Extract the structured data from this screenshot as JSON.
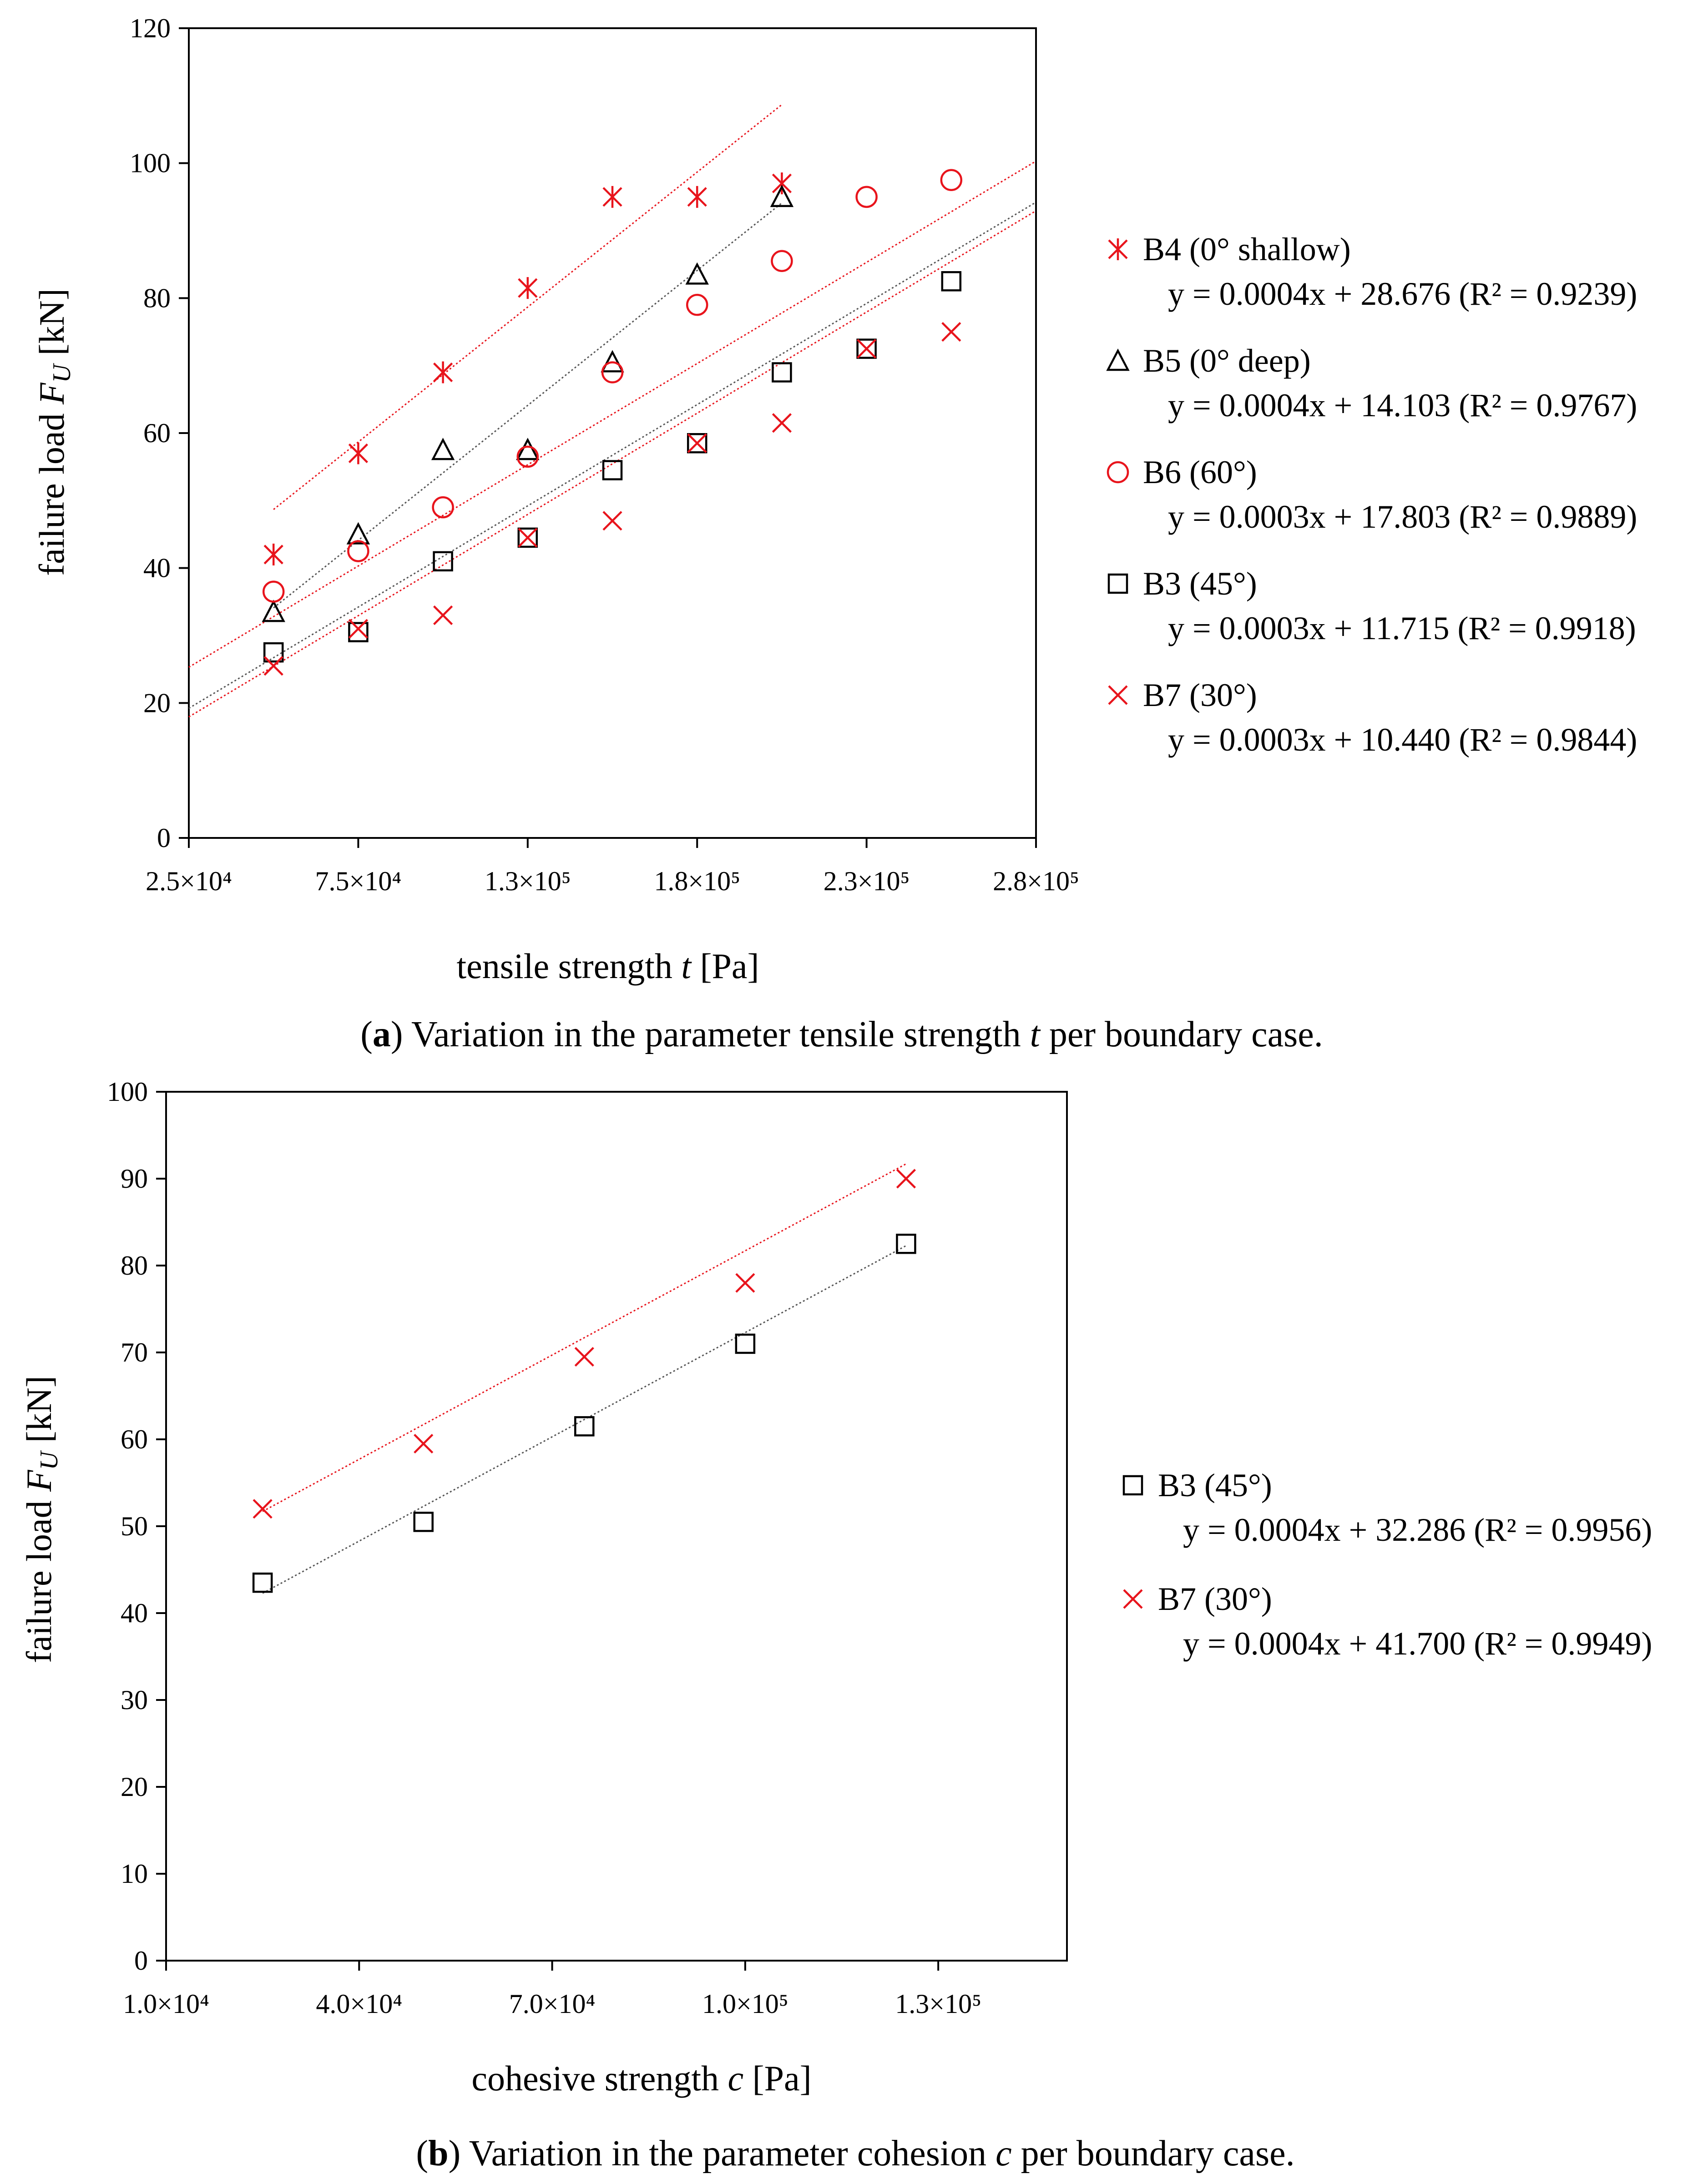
{
  "chart_data": [
    {
      "id": "a",
      "type": "scatter",
      "caption": {
        "open": "(",
        "letter": "a",
        "close": ")",
        "text_before": " Variation in the parameter tensile strength ",
        "symbol": "t",
        "text_after": " per boundary case."
      },
      "xlabel": {
        "before": "tensile strength ",
        "symbol": "t",
        "after": " [Pa]"
      },
      "ylabel": {
        "before": "failure load ",
        "symbol": "F",
        "sub": "U",
        "after": " [kN]"
      },
      "xlim": [
        25000,
        275000
      ],
      "ylim": [
        0,
        120
      ],
      "xticks": [
        {
          "value": 25000,
          "label": "2.5×10⁴"
        },
        {
          "value": 75000,
          "label": "7.5×10⁴"
        },
        {
          "value": 125000,
          "label": "1.3×10⁵"
        },
        {
          "value": 175000,
          "label": "1.8×10⁵"
        },
        {
          "value": 225000,
          "label": "2.3×10⁵"
        },
        {
          "value": 275000,
          "label": "2.8×10⁵"
        }
      ],
      "yticks": [
        0,
        20,
        40,
        60,
        80,
        100,
        120
      ],
      "legend_position": "right",
      "series": [
        {
          "name": "B4 (0° shallow)",
          "equation": "y = 0.0004x + 28.676 (R² = 0.9239)",
          "marker": "asterisk",
          "color": "#e8141c",
          "trend_color": "#e8141c",
          "x": [
            50000,
            75000,
            100000,
            125000,
            150000,
            175000,
            200000
          ],
          "y": [
            42,
            57,
            69,
            81.5,
            95,
            95,
            97
          ],
          "trend": {
            "slope": 0.0004,
            "intercept": 28.676,
            "x_range": [
              50000,
              200000
            ]
          }
        },
        {
          "name": "B5 (0° deep)",
          "equation": "y = 0.0004x + 14.103 (R² = 0.9767)",
          "marker": "triangle",
          "color": "#000000",
          "trend_color": "#555555",
          "x": [
            50000,
            75000,
            100000,
            125000,
            150000,
            175000,
            200000
          ],
          "y": [
            33.5,
            45,
            57.5,
            57.5,
            70.5,
            83.5,
            95
          ],
          "trend": {
            "slope": 0.0004,
            "intercept": 14.103,
            "x_range": [
              50000,
              200000
            ]
          }
        },
        {
          "name": "B6 (60°)",
          "equation": "y = 0.0003x + 17.803 (R² = 0.9889)",
          "marker": "circle",
          "color": "#e8141c",
          "trend_color": "#e8141c",
          "x": [
            50000,
            75000,
            100000,
            125000,
            150000,
            175000,
            200000,
            225000,
            250000
          ],
          "y": [
            36.5,
            42.5,
            49,
            56.5,
            69,
            79,
            85.5,
            95,
            97.5
          ],
          "trend": {
            "slope": 0.0003,
            "intercept": 17.803,
            "x_range": [
              25000,
              275000
            ]
          }
        },
        {
          "name": "B3 (45°)",
          "equation": "y = 0.0003x + 11.715 (R² = 0.9918)",
          "marker": "square",
          "color": "#000000",
          "trend_color": "#555555",
          "x": [
            50000,
            75000,
            100000,
            125000,
            150000,
            175000,
            200000,
            225000,
            250000
          ],
          "y": [
            27.5,
            30.5,
            41,
            44.5,
            54.5,
            58.5,
            69,
            72.5,
            82.5
          ],
          "trend": {
            "slope": 0.0003,
            "intercept": 11.715,
            "x_range": [
              25000,
              275000
            ]
          }
        },
        {
          "name": "B7 (30°)",
          "equation": "y = 0.0003x + 10.440 (R² = 0.9844)",
          "marker": "x",
          "color": "#e8141c",
          "trend_color": "#e8141c",
          "x": [
            50000,
            75000,
            100000,
            125000,
            150000,
            175000,
            200000,
            225000,
            250000
          ],
          "y": [
            25.5,
            31,
            33,
            44.5,
            47,
            58.5,
            61.5,
            72.5,
            75
          ],
          "trend": {
            "slope": 0.0003,
            "intercept": 10.44,
            "x_range": [
              25000,
              275000
            ]
          }
        }
      ]
    },
    {
      "id": "b",
      "type": "scatter",
      "caption": {
        "open": "(",
        "letter": "b",
        "close": ")",
        "text_before": " Variation in the parameter cohesion ",
        "symbol": "c",
        "text_after": " per boundary case."
      },
      "xlabel": {
        "before": "cohesive strength ",
        "symbol": "c",
        "after": " [Pa]"
      },
      "ylabel": {
        "before": "failure load ",
        "symbol": "F",
        "sub": "U",
        "after": " [kN]"
      },
      "xlim": [
        10000,
        150000
      ],
      "ylim": [
        0,
        100
      ],
      "xticks": [
        {
          "value": 10000,
          "label": "1.0×10⁴"
        },
        {
          "value": 40000,
          "label": "4.0×10⁴"
        },
        {
          "value": 70000,
          "label": "7.0×10⁴"
        },
        {
          "value": 100000,
          "label": "1.0×10⁵"
        },
        {
          "value": 130000,
          "label": "1.3×10⁵"
        }
      ],
      "yticks": [
        0,
        10,
        20,
        30,
        40,
        50,
        60,
        70,
        80,
        90,
        100
      ],
      "legend_position": "right",
      "series": [
        {
          "name": "B3 (45°)",
          "equation": "y = 0.0004x + 32.286 (R² = 0.9956)",
          "marker": "square",
          "color": "#000000",
          "trend_color": "#555555",
          "x": [
            25000,
            50000,
            75000,
            100000,
            125000
          ],
          "y": [
            43.5,
            50.5,
            61.5,
            71,
            82.5
          ],
          "trend": {
            "slope": 0.0004,
            "intercept": 32.286,
            "x_range": [
              25000,
              125000
            ]
          }
        },
        {
          "name": "B7 (30°)",
          "equation": "y = 0.0004x + 41.700 (R² = 0.9949)",
          "marker": "x",
          "color": "#e8141c",
          "trend_color": "#e8141c",
          "x": [
            25000,
            50000,
            75000,
            100000,
            125000
          ],
          "y": [
            52,
            59.5,
            69.5,
            78,
            90
          ],
          "trend": {
            "slope": 0.0004,
            "intercept": 41.7,
            "x_range": [
              25000,
              125000
            ]
          }
        }
      ]
    }
  ]
}
